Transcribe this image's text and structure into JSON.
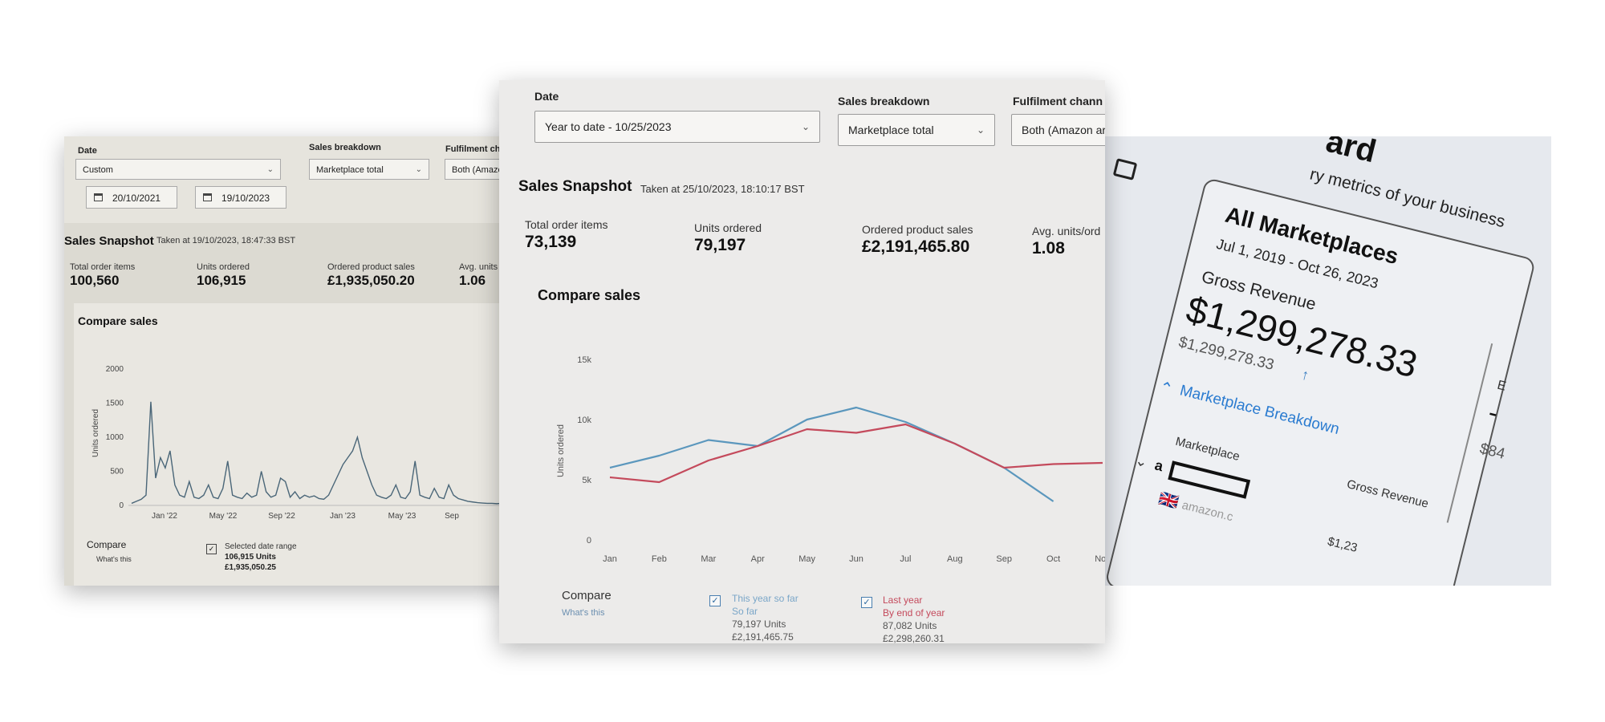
{
  "left": {
    "filters": {
      "date_label": "Date",
      "date_value": "Custom",
      "breakdown_label": "Sales breakdown",
      "breakdown_value": "Marketplace total",
      "fulfilment_label": "Fulfilment ch",
      "fulfilment_value": "Both (Amazo",
      "start_date": "20/10/2021",
      "end_date": "19/10/2023"
    },
    "snapshot": {
      "title": "Sales Snapshot",
      "taken_at": "Taken at 19/10/2023, 18:47:33 BST",
      "metrics": [
        {
          "label": "Total order items",
          "value": "100,560"
        },
        {
          "label": "Units ordered",
          "value": "106,915"
        },
        {
          "label": "Ordered product sales",
          "value": "£1,935,050.20"
        },
        {
          "label": "Avg. units",
          "value": "1.06"
        }
      ]
    },
    "compare_title": "Compare sales",
    "compare": {
      "label": "Compare",
      "whats_this": "What's this",
      "selected_title": "Selected date range",
      "selected_units": "106,915 Units",
      "selected_sales": "£1,935,050.25"
    },
    "chart_data": {
      "type": "line",
      "ylabel": "Units ordered",
      "ylim": [
        0,
        2000
      ],
      "yticks": [
        "0",
        "500",
        "1000",
        "1500",
        "2000"
      ],
      "xticks": [
        "Jan '22",
        "May '22",
        "Sep '22",
        "Jan '23",
        "May '23",
        "Sep"
      ],
      "color": "#4a6678",
      "series": [
        {
          "values": [
            30,
            60,
            90,
            150,
            1520,
            400,
            700,
            550,
            800,
            300,
            150,
            120,
            350,
            120,
            100,
            150,
            300,
            120,
            100,
            250,
            650,
            150,
            120,
            100,
            180,
            120,
            150,
            500,
            200,
            120,
            150,
            400,
            350,
            120,
            200,
            100,
            150,
            120,
            140,
            100,
            90,
            150,
            300,
            450,
            600,
            700,
            800,
            1000,
            700,
            500,
            300,
            150,
            120,
            100,
            150,
            300,
            120,
            100,
            200,
            650,
            150,
            120,
            100,
            250,
            120,
            100,
            300,
            150,
            100,
            80,
            60,
            50,
            40,
            35,
            30,
            30,
            25,
            30
          ]
        }
      ]
    }
  },
  "middle": {
    "filters": {
      "date_label": "Date",
      "date_value": "Year to date - 10/25/2023",
      "breakdown_label": "Sales breakdown",
      "breakdown_value": "Marketplace total",
      "fulfilment_label": "Fulfilment chann",
      "fulfilment_value": "Both (Amazon ar"
    },
    "snapshot": {
      "title": "Sales Snapshot",
      "taken_at": "Taken at 25/10/2023, 18:10:17 BST",
      "metrics": [
        {
          "label": "Total order items",
          "value": "73,139"
        },
        {
          "label": "Units ordered",
          "value": "79,197"
        },
        {
          "label": "Ordered product sales",
          "value": "£2,191,465.80"
        },
        {
          "label": "Avg. units/ord",
          "value": "1.08"
        }
      ]
    },
    "compare_title": "Compare sales",
    "compare": {
      "label": "Compare",
      "whats_this": "What's this",
      "this_year": {
        "title": "This year so far",
        "sub": "So far",
        "units": "79,197 Units",
        "sales": "£2,191,465.75"
      },
      "last_year": {
        "title": "Last year",
        "sub": "By end of year",
        "units": "87,082 Units",
        "sales": "£2,298,260.31"
      }
    },
    "chart_data": {
      "type": "line",
      "ylabel": "Units ordered",
      "ylim": [
        0,
        15000
      ],
      "yticks": [
        "0",
        "5k",
        "10k",
        "15k"
      ],
      "categories": [
        "Jan",
        "Feb",
        "Mar",
        "Apr",
        "May",
        "Jun",
        "Jul",
        "Aug",
        "Sep",
        "Oct",
        "Nov"
      ],
      "series": [
        {
          "color": "#5b97bd",
          "values": [
            6000,
            7000,
            8300,
            7800,
            10000,
            11000,
            9800,
            8000,
            6000,
            3200,
            null
          ]
        },
        {
          "color": "#c44a5c",
          "values": [
            5200,
            4800,
            6600,
            7800,
            9200,
            8900,
            9600,
            8000,
            6000,
            6300,
            6400
          ]
        }
      ]
    }
  },
  "right": {
    "heading_fragment": "ard",
    "subtitle_fragment": "ry metrics of your business",
    "title": "All Marketplaces",
    "date_range": "Jul 1, 2019 - Oct 26, 2023",
    "gross_label": "Gross Revenue",
    "gross_value": "$1,299,278.33",
    "gross_sub": "$1,299,278.33",
    "breakdown_link": "Marketplace Breakdown",
    "marketplace_col": "Marketplace",
    "gross_col": "Gross Revenue",
    "amazon_text": "amazon.c",
    "partial_value": "$84",
    "partial_bottom": "$1,23",
    "partial_e": "E",
    "partial_dash": "-"
  }
}
